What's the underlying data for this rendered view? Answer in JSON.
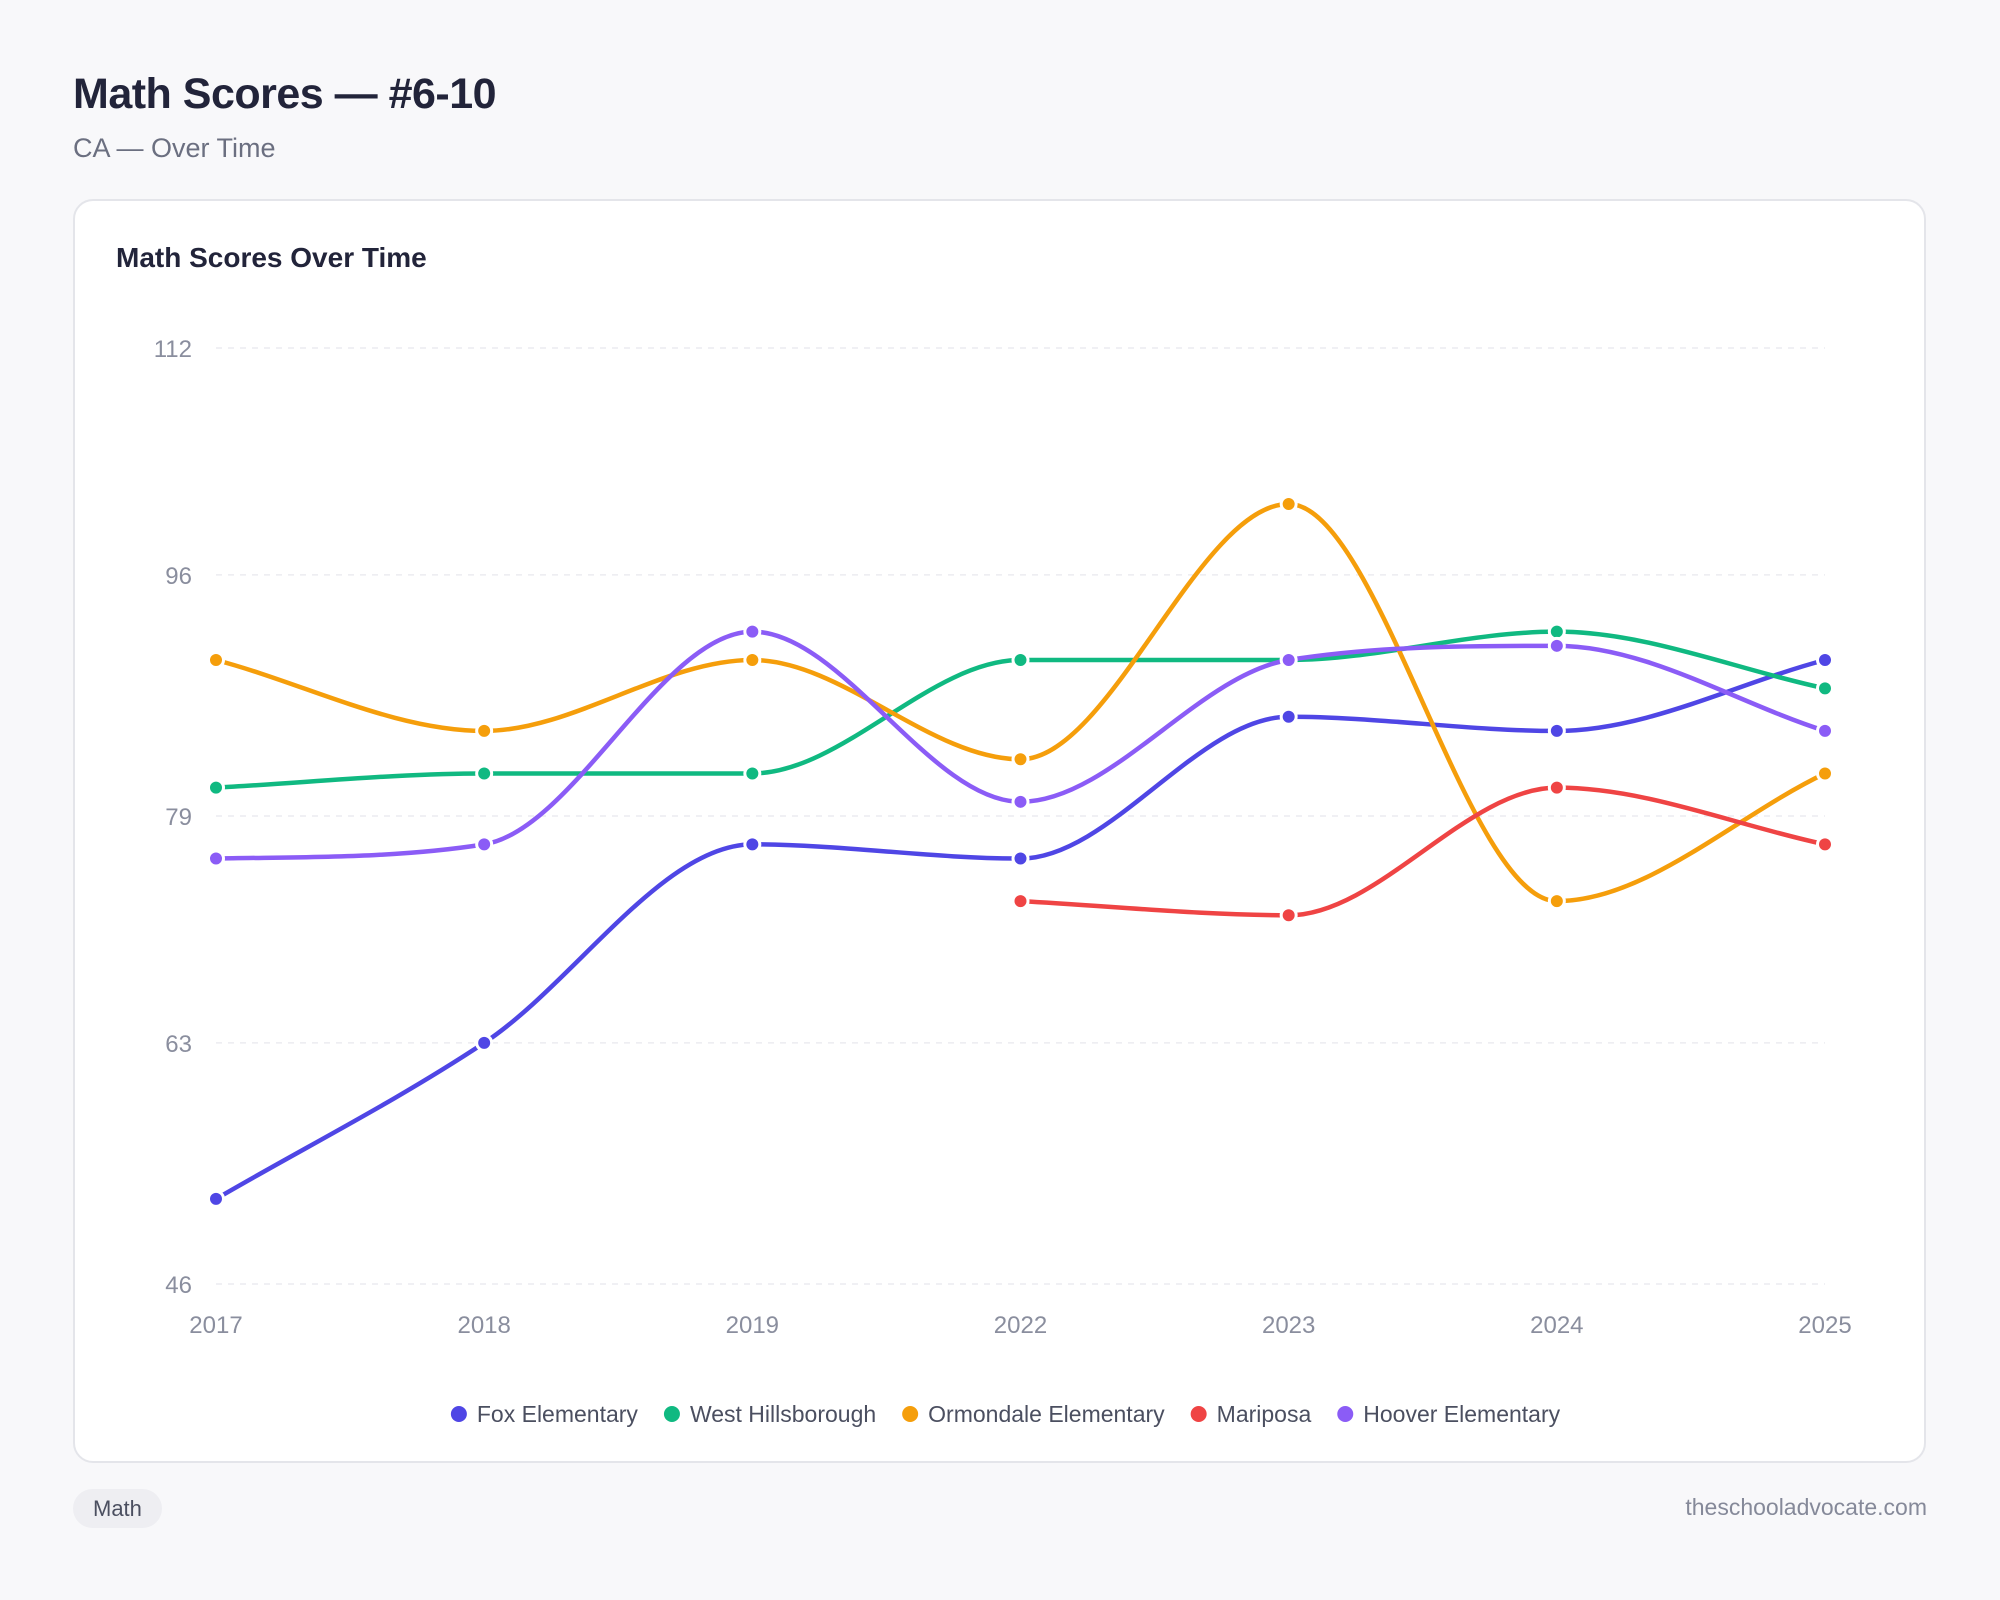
{
  "header": {
    "title": "Math Scores — #6-10",
    "subtitle": "CA — Over Time"
  },
  "footer": {
    "tag": "Math",
    "site": "theschooladvocate.com"
  },
  "chart_data": {
    "type": "line",
    "title": "Math Scores Over Time",
    "x": [
      "2017",
      "2018",
      "2019",
      "2022",
      "2023",
      "2024",
      "2025"
    ],
    "ylim": [
      46,
      112
    ],
    "yticks": [
      46,
      63,
      79,
      96,
      112
    ],
    "grid": true,
    "legend_position": "bottom-center",
    "series": [
      {
        "name": "Fox Elementary",
        "color": "#4f46e5",
        "values": [
          52,
          63,
          77,
          76,
          86,
          85,
          90
        ]
      },
      {
        "name": "West Hillsborough",
        "color": "#10b981",
        "values": [
          81,
          82,
          82,
          90,
          90,
          92,
          88
        ]
      },
      {
        "name": "Ormondale Elementary",
        "color": "#f59e0b",
        "values": [
          90,
          85,
          90,
          83,
          101,
          73,
          82
        ]
      },
      {
        "name": "Mariposa",
        "color": "#ef4444",
        "values": [
          null,
          null,
          null,
          73,
          72,
          81,
          77
        ]
      },
      {
        "name": "Hoover Elementary",
        "color": "#8b5cf6",
        "values": [
          76,
          77,
          92,
          80,
          90,
          91,
          85
        ]
      }
    ]
  }
}
